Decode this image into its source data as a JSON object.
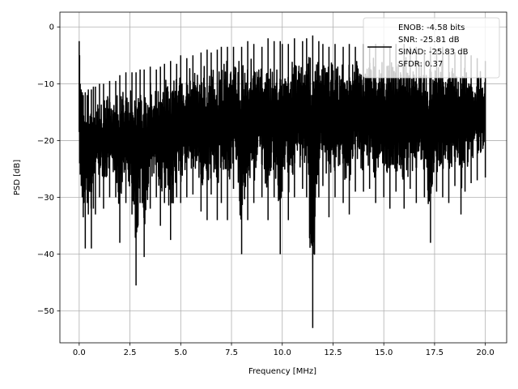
{
  "chart_data": {
    "type": "line",
    "title": "",
    "xlabel": "Frequency [MHz]",
    "ylabel": "PSD [dB]",
    "xlim": [
      -0.95,
      21.05
    ],
    "ylim": [
      -55.6,
      2.6
    ],
    "xticks": [
      0.0,
      2.5,
      5.0,
      7.5,
      10.0,
      12.5,
      15.0,
      17.5,
      20.0
    ],
    "xtick_labels": [
      "0.0",
      "2.5",
      "5.0",
      "7.5",
      "10.0",
      "12.5",
      "15.0",
      "17.5",
      "20.0"
    ],
    "yticks": [
      0,
      -10,
      -20,
      -30,
      -40,
      -50
    ],
    "ytick_labels": [
      "0",
      "−10",
      "−20",
      "−30",
      "−40",
      "−50"
    ],
    "grid": true,
    "legend_position": "top-right",
    "series": [
      {
        "name": "ENOB: -4.58 bits\nSNR: -25.81 dB\nSINAD: -25.83 dB\nSFDR: 0.37",
        "color": "#000000",
        "x": [
          0.0,
          0.02,
          0.05,
          0.1,
          0.15,
          0.2,
          0.3,
          0.4,
          0.45,
          0.6,
          0.7,
          0.8,
          1.0,
          1.2,
          1.5,
          1.8,
          2.0,
          2.3,
          2.6,
          2.8,
          3.0,
          3.2,
          3.5,
          3.8,
          4.0,
          4.2,
          4.5,
          4.8,
          5.0,
          5.3,
          5.6,
          6.0,
          6.3,
          6.5,
          6.8,
          7.0,
          7.3,
          7.6,
          8.0,
          8.3,
          8.6,
          9.0,
          9.3,
          9.6,
          9.9,
          10.0,
          10.3,
          10.6,
          11.0,
          11.2,
          11.5,
          11.8,
          12.0,
          12.3,
          12.6,
          13.0,
          13.3,
          13.6,
          14.0,
          14.3,
          14.6,
          15.0,
          15.3,
          15.6,
          16.0,
          16.3,
          16.6,
          17.0,
          17.3,
          17.6,
          17.9,
          18.2,
          18.5,
          18.8,
          19.0,
          19.3,
          19.6,
          20.0
        ],
        "upper": [
          -2.5,
          -5.0,
          -10.0,
          -11.0,
          -11.5,
          -12.0,
          -11.5,
          -12.0,
          -11.0,
          -11.0,
          -10.5,
          -10.5,
          -10.0,
          -10.0,
          -9.5,
          -9.5,
          -8.5,
          -8.0,
          -8.0,
          -8.0,
          -7.5,
          -7.5,
          -7.0,
          -7.5,
          -7.0,
          -6.5,
          -6.0,
          -6.5,
          -5.0,
          -5.5,
          -5.0,
          -4.5,
          -4.0,
          -4.5,
          -4.0,
          -3.5,
          -3.5,
          -3.5,
          -3.5,
          -2.5,
          -3.0,
          -3.5,
          -2.0,
          -2.5,
          -2.5,
          -3.0,
          -3.0,
          -2.0,
          -2.5,
          -2.0,
          -1.5,
          -2.5,
          -3.0,
          -3.5,
          -3.0,
          -3.5,
          -3.0,
          -3.5,
          -3.0,
          -3.5,
          -3.0,
          -3.0,
          -3.5,
          -3.0,
          -3.0,
          -3.5,
          -3.5,
          -4.0,
          -3.5,
          -4.0,
          -3.5,
          -4.0,
          -4.5,
          -4.5,
          -4.5,
          -5.0,
          -5.5,
          -6.0
        ],
        "lower": [
          -18.5,
          -24.0,
          -26.0,
          -28.0,
          -30.0,
          -33.5,
          -39.0,
          -31.0,
          -33.0,
          -39.0,
          -32.0,
          -33.0,
          -30.0,
          -32.0,
          -30.0,
          -30.0,
          -38.0,
          -31.0,
          -33.0,
          -45.5,
          -31.0,
          -40.5,
          -32.0,
          -30.0,
          -35.0,
          -31.0,
          -37.5,
          -30.0,
          -31.0,
          -30.0,
          -29.5,
          -32.5,
          -34.0,
          -29.5,
          -34.0,
          -31.0,
          -34.0,
          -28.5,
          -40.0,
          -34.0,
          -31.0,
          -30.0,
          -34.0,
          -30.0,
          -40.0,
          -29.0,
          -34.0,
          -30.0,
          -28.5,
          -30.0,
          -53.0,
          -30.0,
          -28.0,
          -33.5,
          -30.0,
          -31.0,
          -33.0,
          -29.0,
          -29.0,
          -28.5,
          -31.0,
          -30.0,
          -32.0,
          -29.0,
          -32.0,
          -28.5,
          -31.0,
          -30.0,
          -38.0,
          -29.0,
          -30.0,
          -31.0,
          -28.0,
          -33.0,
          -29.0,
          -27.5,
          -27.0,
          -26.5
        ]
      }
    ]
  }
}
